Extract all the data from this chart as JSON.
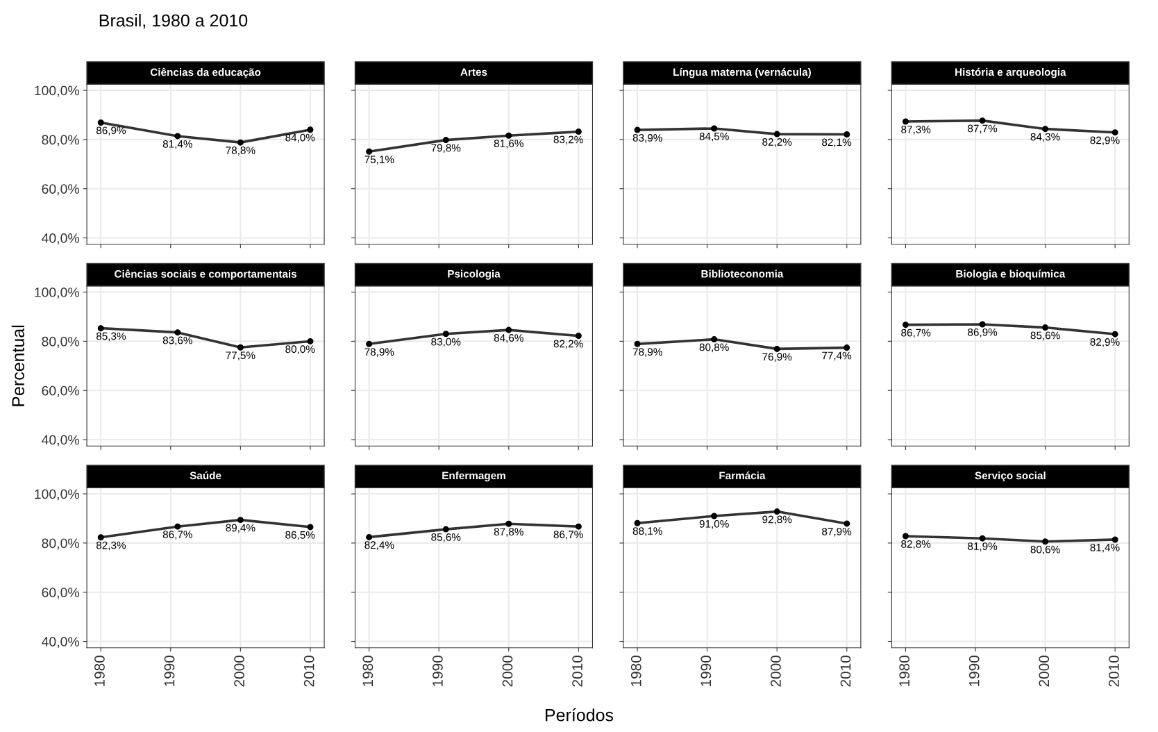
{
  "chart_data": [
    {
      "type": "line",
      "title": "Ciências da educação",
      "annotations": [
        "Brasil, 1980 a 2010"
      ],
      "x": [
        1980,
        1991,
        2000,
        2010
      ],
      "values": [
        86.9,
        81.4,
        78.8,
        84.0
      ],
      "value_labels": [
        "86,9%",
        "81,4%",
        "78,8%",
        "84,0%"
      ],
      "color": "#333333",
      "marker": "circle",
      "xlim": [
        1978,
        2012
      ],
      "xticks": [
        1980,
        1990,
        2000,
        2010
      ],
      "ylim": [
        37.4,
        102.5
      ],
      "yticks": [
        {
          "value": 40,
          "label": "40,0%"
        },
        {
          "value": 60,
          "label": "60,0%"
        },
        {
          "value": 80,
          "label": "80,0%"
        },
        {
          "value": 100,
          "label": "100,0%"
        }
      ],
      "grid": true,
      "tick_labels": "y"
    },
    {
      "type": "line",
      "title": "Artes",
      "x": [
        1980,
        1991,
        2000,
        2010
      ],
      "values": [
        75.1,
        79.8,
        81.6,
        83.2
      ],
      "value_labels": [
        "75,1%",
        "79,8%",
        "81,6%",
        "83,2%"
      ],
      "color": "#333333",
      "marker": "circle",
      "xlim": [
        1978,
        2012
      ],
      "xticks": [
        1980,
        1990,
        2000,
        2010
      ],
      "ylim": [
        37.4,
        102.5
      ],
      "yticks": [
        40,
        60,
        80,
        100
      ],
      "grid": true,
      "tick_labels": false
    },
    {
      "type": "line",
      "title": "Língua materna (vernácula)",
      "x": [
        1980,
        1991,
        2000,
        2010
      ],
      "values": [
        83.9,
        84.5,
        82.2,
        82.1
      ],
      "value_labels": [
        "83,9%",
        "84,5%",
        "82,2%",
        "82,1%"
      ],
      "color": "#333333",
      "marker": "circle",
      "xlim": [
        1978,
        2012
      ],
      "xticks": [
        1980,
        1990,
        2000,
        2010
      ],
      "ylim": [
        37.4,
        102.5
      ],
      "yticks": [
        40,
        60,
        80,
        100
      ],
      "grid": true,
      "tick_labels": false
    },
    {
      "type": "line",
      "title": "História e arqueologia",
      "x": [
        1980,
        1991,
        2000,
        2010
      ],
      "values": [
        87.3,
        87.7,
        84.3,
        82.9
      ],
      "value_labels": [
        "87,3%",
        "87,7%",
        "84,3%",
        "82,9%"
      ],
      "color": "#333333",
      "marker": "circle",
      "xlim": [
        1978,
        2012
      ],
      "xticks": [
        1980,
        1990,
        2000,
        2010
      ],
      "ylim": [
        37.4,
        102.5
      ],
      "yticks": [
        40,
        60,
        80,
        100
      ],
      "grid": true,
      "tick_labels": false
    },
    {
      "type": "line",
      "title": "Ciências sociais e comportamentais",
      "ylabel": "Percentual",
      "x": [
        1980,
        1991,
        2000,
        2010
      ],
      "values": [
        85.3,
        83.6,
        77.5,
        80.0
      ],
      "value_labels": [
        "85,3%",
        "83,6%",
        "77,5%",
        "80,0%"
      ],
      "color": "#333333",
      "marker": "circle",
      "xlim": [
        1978,
        2012
      ],
      "xticks": [
        1980,
        1990,
        2000,
        2010
      ],
      "ylim": [
        37.4,
        102.5
      ],
      "yticks": [
        {
          "value": 40,
          "label": "40,0%"
        },
        {
          "value": 60,
          "label": "60,0%"
        },
        {
          "value": 80,
          "label": "80,0%"
        },
        {
          "value": 100,
          "label": "100,0%"
        }
      ],
      "grid": true,
      "tick_labels": "y"
    },
    {
      "type": "line",
      "title": "Psicologia",
      "x": [
        1980,
        1991,
        2000,
        2010
      ],
      "values": [
        78.9,
        83.0,
        84.6,
        82.2
      ],
      "value_labels": [
        "78,9%",
        "83,0%",
        "84,6%",
        "82,2%"
      ],
      "color": "#333333",
      "marker": "circle",
      "xlim": [
        1978,
        2012
      ],
      "xticks": [
        1980,
        1990,
        2000,
        2010
      ],
      "ylim": [
        37.4,
        102.5
      ],
      "yticks": [
        40,
        60,
        80,
        100
      ],
      "grid": true,
      "tick_labels": false
    },
    {
      "type": "line",
      "title": "Biblioteconomia",
      "x": [
        1980,
        1991,
        2000,
        2010
      ],
      "values": [
        78.9,
        80.8,
        76.9,
        77.4
      ],
      "value_labels": [
        "78,9%",
        "80,8%",
        "76,9%",
        "77,4%"
      ],
      "color": "#333333",
      "marker": "circle",
      "xlim": [
        1978,
        2012
      ],
      "xticks": [
        1980,
        1990,
        2000,
        2010
      ],
      "ylim": [
        37.4,
        102.5
      ],
      "yticks": [
        40,
        60,
        80,
        100
      ],
      "grid": true,
      "tick_labels": false
    },
    {
      "type": "line",
      "title": "Biologia e bioquímica",
      "x": [
        1980,
        1991,
        2000,
        2010
      ],
      "values": [
        86.7,
        86.9,
        85.6,
        82.9
      ],
      "value_labels": [
        "86,7%",
        "86,9%",
        "85,6%",
        "82,9%"
      ],
      "color": "#333333",
      "marker": "circle",
      "xlim": [
        1978,
        2012
      ],
      "xticks": [
        1980,
        1990,
        2000,
        2010
      ],
      "ylim": [
        37.4,
        102.5
      ],
      "yticks": [
        40,
        60,
        80,
        100
      ],
      "grid": true,
      "tick_labels": false
    },
    {
      "type": "line",
      "title": "Saúde",
      "x": [
        1980,
        1991,
        2000,
        2010
      ],
      "values": [
        82.3,
        86.7,
        89.4,
        86.5
      ],
      "value_labels": [
        "82,3%",
        "86,7%",
        "89,4%",
        "86,5%"
      ],
      "color": "#333333",
      "marker": "circle",
      "xlim": [
        1978,
        2012
      ],
      "xticks": [
        1980,
        1990,
        2000,
        2010
      ],
      "ylim": [
        37.4,
        102.5
      ],
      "yticks": [
        {
          "value": 40,
          "label": "40,0%"
        },
        {
          "value": 60,
          "label": "60,0%"
        },
        {
          "value": 80,
          "label": "80,0%"
        },
        {
          "value": 100,
          "label": "100,0%"
        }
      ],
      "grid": true
    },
    {
      "type": "line",
      "title": "Enfermagem",
      "xlabel": "Períodos",
      "x": [
        1980,
        1991,
        2000,
        2010
      ],
      "values": [
        82.4,
        85.6,
        87.8,
        86.7
      ],
      "value_labels": [
        "82,4%",
        "85,6%",
        "87,8%",
        "86,7%"
      ],
      "color": "#333333",
      "marker": "circle",
      "xlim": [
        1978,
        2012
      ],
      "xticks": [
        1980,
        1990,
        2000,
        2010
      ],
      "ylim": [
        37.4,
        102.5
      ],
      "yticks": [
        40,
        60,
        80,
        100
      ],
      "grid": true,
      "tick_labels": "x"
    },
    {
      "type": "line",
      "title": "Farmácia",
      "x": [
        1980,
        1991,
        2000,
        2010
      ],
      "values": [
        88.1,
        91.0,
        92.8,
        87.9
      ],
      "value_labels": [
        "88,1%",
        "91,0%",
        "92,8%",
        "87,9%"
      ],
      "color": "#333333",
      "marker": "circle",
      "xlim": [
        1978,
        2012
      ],
      "xticks": [
        1980,
        1990,
        2000,
        2010
      ],
      "ylim": [
        37.4,
        102.5
      ],
      "yticks": [
        40,
        60,
        80,
        100
      ],
      "grid": true,
      "tick_labels": "x"
    },
    {
      "type": "line",
      "title": "Serviço social",
      "x": [
        1980,
        1991,
        2000,
        2010
      ],
      "values": [
        82.8,
        81.9,
        80.6,
        81.4
      ],
      "value_labels": [
        "82,8%",
        "81,9%",
        "80,6%",
        "81,4%"
      ],
      "color": "#333333",
      "marker": "circle",
      "xlim": [
        1978,
        2012
      ],
      "xticks": [
        1980,
        1990,
        2000,
        2010
      ],
      "ylim": [
        37.4,
        102.5
      ],
      "yticks": [
        40,
        60,
        80,
        100
      ],
      "grid": true,
      "tick_labels": "x"
    }
  ]
}
